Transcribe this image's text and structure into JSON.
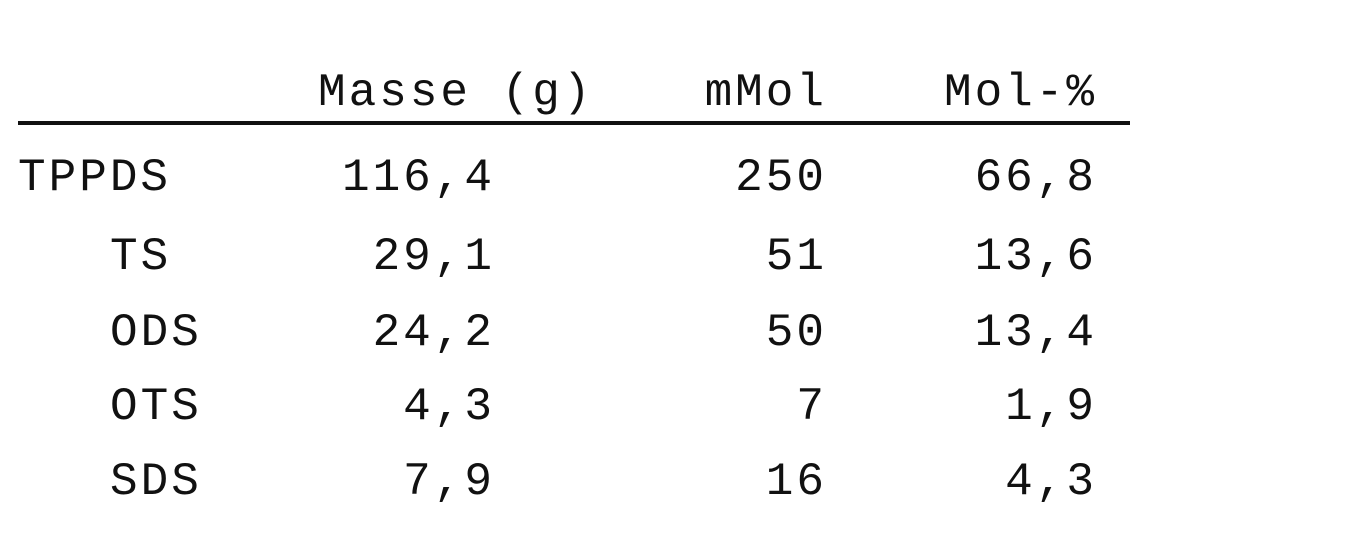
{
  "table": {
    "headers": [
      "",
      "Masse (g)",
      "mMol",
      "Mol-%"
    ],
    "rows": [
      {
        "name": "TPPDS",
        "masse": "116,4",
        "mmol": "250",
        "molpct": "66,8"
      },
      {
        "name": "TS",
        "masse": "29,1",
        "mmol": "51",
        "molpct": "13,6"
      },
      {
        "name": "ODS",
        "masse": "24,2",
        "mmol": "50",
        "molpct": "13,4"
      },
      {
        "name": "OTS",
        "masse": "4,3",
        "mmol": "7",
        "molpct": "1,9"
      },
      {
        "name": "SDS",
        "masse": "7,9",
        "mmol": "16",
        "molpct": "4,3"
      }
    ]
  }
}
